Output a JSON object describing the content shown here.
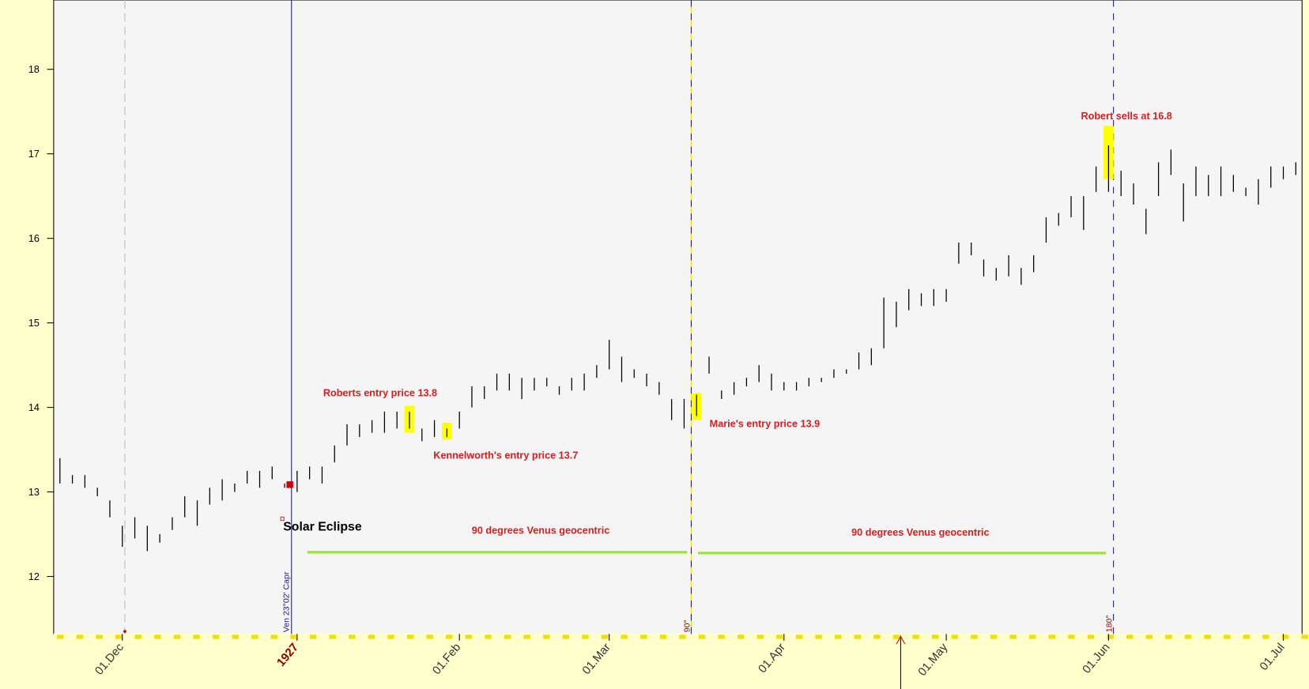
{
  "chart_data": {
    "type": "hilo",
    "categories": [
      null,
      null,
      null,
      null,
      null,
      "01.Dec",
      null,
      null,
      null,
      null,
      null,
      null,
      null,
      null,
      null,
      null,
      null,
      null,
      null,
      "1927",
      null,
      null,
      null,
      null,
      null,
      null,
      null,
      null,
      null,
      null,
      null,
      null,
      "01.Feb",
      null,
      null,
      null,
      null,
      null,
      null,
      null,
      null,
      null,
      null,
      null,
      "01.Mar",
      null,
      null,
      null,
      null,
      null,
      null,
      null,
      null,
      null,
      null,
      null,
      null,
      null,
      "01.Apr",
      null,
      null,
      null,
      null,
      null,
      null,
      null,
      null,
      null,
      null,
      null,
      null,
      "01.May",
      null,
      null,
      null,
      null,
      null,
      null,
      null,
      null,
      null,
      null,
      null,
      null,
      "01.Jun",
      null,
      null,
      null,
      null,
      null,
      null,
      null,
      null,
      null,
      null,
      null,
      null,
      null,
      "01.Jul",
      null
    ],
    "high": [
      13.4,
      13.2,
      13.2,
      13.05,
      12.9,
      12.6,
      12.7,
      12.6,
      12.5,
      12.7,
      12.95,
      12.9,
      13.05,
      13.15,
      13.1,
      13.25,
      13.25,
      13.3,
      13.1,
      13.25,
      13.3,
      13.3,
      13.55,
      13.8,
      13.8,
      13.85,
      13.95,
      13.95,
      13.95,
      13.75,
      13.85,
      13.75,
      13.95,
      14.25,
      14.25,
      14.4,
      14.4,
      14.35,
      14.35,
      14.35,
      14.25,
      14.35,
      14.4,
      14.5,
      14.8,
      14.6,
      14.45,
      14.4,
      14.3,
      14.1,
      14.1,
      14.15,
      14.6,
      14.2,
      14.3,
      14.35,
      14.5,
      14.4,
      14.3,
      14.3,
      14.35,
      14.35,
      14.45,
      14.45,
      14.65,
      14.7,
      15.3,
      15.25,
      15.4,
      15.35,
      15.4,
      15.4,
      15.95,
      15.95,
      15.75,
      15.65,
      15.8,
      15.65,
      15.8,
      16.25,
      16.3,
      16.5,
      16.5,
      16.85,
      17.1,
      16.8,
      16.65,
      16.35,
      16.9,
      17.05,
      16.65,
      16.85,
      16.75,
      16.85,
      16.75,
      16.6,
      16.7,
      16.85,
      16.85,
      16.9
    ],
    "low": [
      13.1,
      13.1,
      13.05,
      12.95,
      12.7,
      12.35,
      12.45,
      12.3,
      12.4,
      12.55,
      12.7,
      12.6,
      12.85,
      12.9,
      13.0,
      13.1,
      13.05,
      13.15,
      13.05,
      13.0,
      13.15,
      13.1,
      13.35,
      13.55,
      13.65,
      13.7,
      13.7,
      13.75,
      13.75,
      13.6,
      13.65,
      13.65,
      13.75,
      14.0,
      14.1,
      14.2,
      14.2,
      14.1,
      14.2,
      14.25,
      14.15,
      14.2,
      14.2,
      14.35,
      14.45,
      14.3,
      14.35,
      14.25,
      14.15,
      13.85,
      13.75,
      13.9,
      14.4,
      14.1,
      14.15,
      14.25,
      14.3,
      14.2,
      14.2,
      14.2,
      14.25,
      14.3,
      14.35,
      14.4,
      14.45,
      14.5,
      14.7,
      14.95,
      15.15,
      15.2,
      15.2,
      15.25,
      15.7,
      15.8,
      15.55,
      15.5,
      15.55,
      15.45,
      15.6,
      15.95,
      16.15,
      16.25,
      16.1,
      16.55,
      16.55,
      16.5,
      16.4,
      16.05,
      16.5,
      16.75,
      16.2,
      16.5,
      16.5,
      16.5,
      16.55,
      16.5,
      16.4,
      16.6,
      16.7,
      16.75
    ],
    "color": "#000000",
    "ylim": [
      11.32,
      18.82
    ],
    "yticks": [
      12,
      13,
      14,
      15,
      16,
      17,
      18
    ],
    "annotations": [
      "Roberts entry price 13.8",
      "Kennelworth's entry price 13.7",
      "Marie's entry price 13.9",
      "Robert sells at 16.8",
      "90 degrees Venus geocentric",
      "90 degrees Venus geocentric",
      "Solar Eclipse",
      "Ven 23°02' Capr",
      "90°",
      "180°"
    ]
  }
}
